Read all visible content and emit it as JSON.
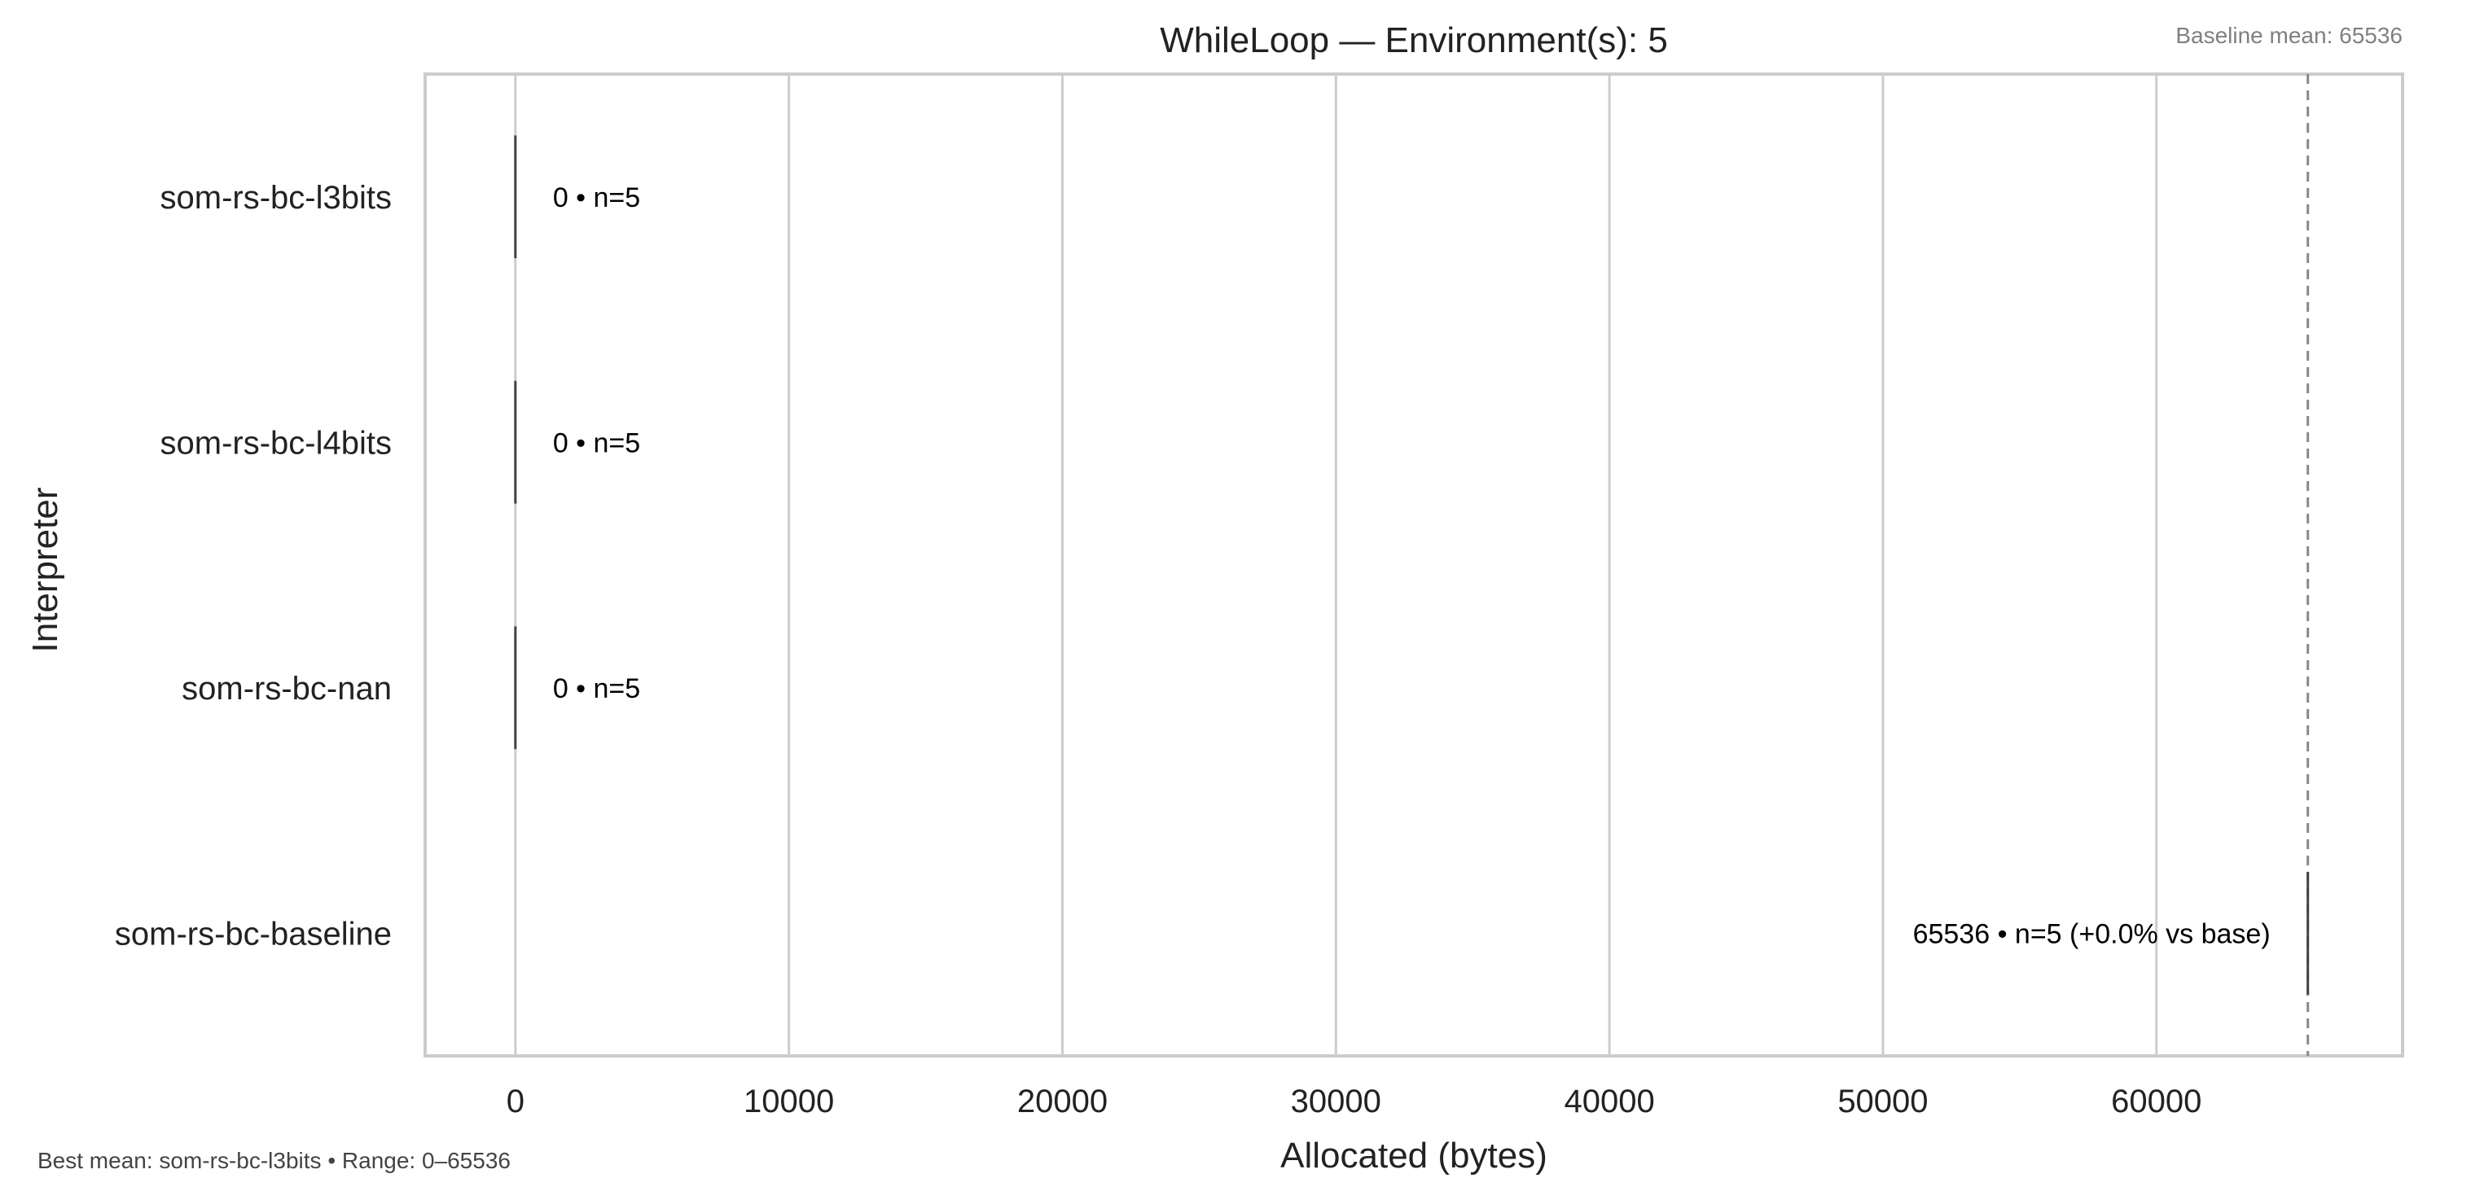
{
  "chart_data": {
    "type": "box",
    "title": "WhileLoop — Environment(s): 5",
    "xlabel": "Allocated (bytes)",
    "ylabel": "Interpreter",
    "xlim": [
      -3300,
      69000
    ],
    "xticks": [
      0,
      10000,
      20000,
      30000,
      40000,
      50000,
      60000
    ],
    "xtick_labels": [
      "0",
      "10000",
      "20000",
      "30000",
      "40000",
      "50000",
      "60000"
    ],
    "grid": "vertical",
    "legend": "none",
    "categories": [
      "som-rs-bc-l3bits",
      "som-rs-bc-l4bits",
      "som-rs-bc-nan",
      "som-rs-bc-baseline"
    ],
    "values": [
      0,
      0,
      0,
      65536
    ],
    "annotations": [
      "0 • n=5",
      "0 • n=5",
      "0 • n=5",
      "65536 • n=5 (+0.0% vs base)"
    ],
    "baseline": {
      "value": 65536,
      "label": "Baseline mean: 65536"
    },
    "footer": "Best mean: som-rs-bc-l3bits • Range: 0–65536",
    "colors": {
      "grid": "#cccccc",
      "frame": "#cccccc",
      "box_line": "#444444",
      "baseline_line": "#888888",
      "text": "#222222"
    }
  }
}
